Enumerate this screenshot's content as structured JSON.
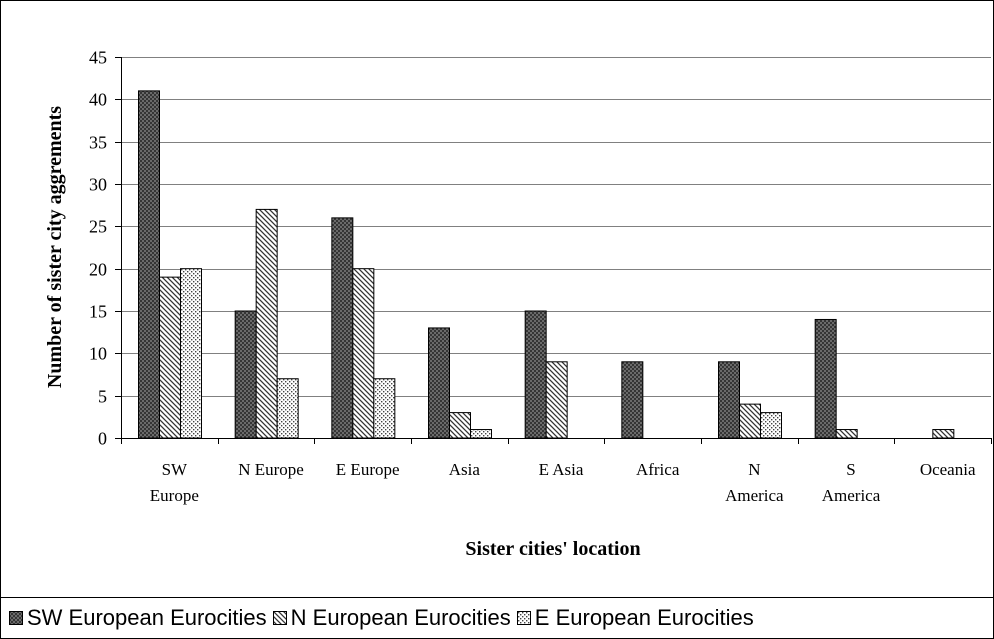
{
  "chart_data": {
    "type": "bar",
    "title": "",
    "xlabel": "Sister cities' location",
    "ylabel": "Number of sister city aggrements",
    "ylim": [
      0,
      45
    ],
    "yticks": [
      0,
      5,
      10,
      15,
      20,
      25,
      30,
      35,
      40,
      45
    ],
    "grid": true,
    "legend_position": "bottom",
    "categories": [
      [
        "SW",
        "Europe"
      ],
      [
        "N Europe"
      ],
      [
        "E Europe"
      ],
      [
        "Asia"
      ],
      [
        "E Asia"
      ],
      [
        "Africa"
      ],
      [
        "N",
        "America"
      ],
      [
        "S",
        "America"
      ],
      [
        "Oceania"
      ]
    ],
    "series": [
      {
        "name": "SW European Eurocities",
        "pattern": "crosshatch",
        "values": [
          41,
          15,
          26,
          13,
          15,
          9,
          9,
          14,
          0
        ]
      },
      {
        "name": "N European Eurocities",
        "pattern": "diagonal",
        "values": [
          19,
          27,
          20,
          3,
          9,
          0,
          4,
          1,
          1
        ]
      },
      {
        "name": "E European Eurocities",
        "pattern": "dots",
        "values": [
          20,
          7,
          7,
          1,
          0,
          0,
          3,
          0,
          0
        ]
      }
    ]
  }
}
